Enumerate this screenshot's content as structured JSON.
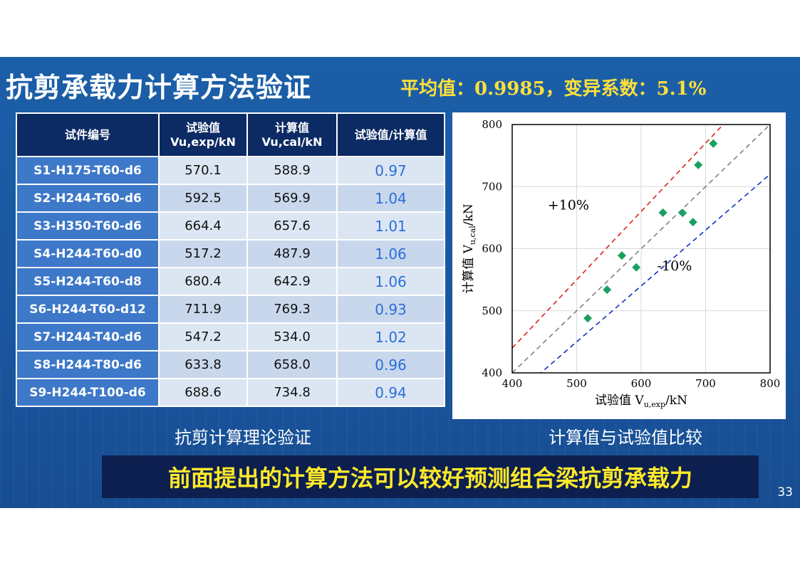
{
  "slide": {
    "title": "抗剪承载力计算方法验证",
    "stats": "平均值：0.9985，变异系数：5.1%",
    "left_caption": "抗剪计算理论验证",
    "right_caption": "计算值与试验值比较",
    "conclusion": "前面提出的计算方法可以较好预测组合梁抗剪承载力",
    "page_number": "33"
  },
  "table": {
    "headers": {
      "id": "试件编号",
      "exp_line1": "试验值",
      "exp_line2": "Vu,exp/kN",
      "cal_line1": "计算值",
      "cal_line2": "Vu,cal/kN",
      "ratio": "试验值/计算值"
    },
    "rows": [
      {
        "id": "S1-H175-T60-d6",
        "exp": "570.1",
        "cal": "588.9",
        "ratio": "0.97"
      },
      {
        "id": "S2-H244-T60-d6",
        "exp": "592.5",
        "cal": "569.9",
        "ratio": "1.04"
      },
      {
        "id": "S3-H350-T60-d6",
        "exp": "664.4",
        "cal": "657.6",
        "ratio": "1.01"
      },
      {
        "id": "S4-H244-T60-d0",
        "exp": "517.2",
        "cal": "487.9",
        "ratio": "1.06"
      },
      {
        "id": "S5-H244-T60-d8",
        "exp": "680.4",
        "cal": "642.9",
        "ratio": "1.06"
      },
      {
        "id": "S6-H244-T60-d12",
        "exp": "711.9",
        "cal": "769.3",
        "ratio": "0.93"
      },
      {
        "id": "S7-H244-T40-d6",
        "exp": "547.2",
        "cal": "534.0",
        "ratio": "1.02"
      },
      {
        "id": "S8-H244-T80-d6",
        "exp": "633.8",
        "cal": "658.0",
        "ratio": "0.96"
      },
      {
        "id": "S9-H244-T100-d6",
        "exp": "688.6",
        "cal": "734.8",
        "ratio": "0.94"
      }
    ]
  },
  "chart_data": {
    "type": "scatter",
    "xlabel": "试验值 V",
    "xlabel_sub": "u,exp",
    "xlabel_unit": "/kN",
    "ylabel": "计算值 V",
    "ylabel_sub": "u,cal",
    "ylabel_unit": "/kN",
    "xlim": [
      400,
      800
    ],
    "ylim": [
      400,
      800
    ],
    "xticks": [
      400,
      500,
      600,
      700,
      800
    ],
    "yticks": [
      400,
      500,
      600,
      700,
      800
    ],
    "grid": true,
    "points": [
      {
        "x": 570.1,
        "y": 588.9
      },
      {
        "x": 592.5,
        "y": 569.9
      },
      {
        "x": 664.4,
        "y": 657.6
      },
      {
        "x": 517.2,
        "y": 487.9
      },
      {
        "x": 680.4,
        "y": 642.9
      },
      {
        "x": 711.9,
        "y": 769.3
      },
      {
        "x": 547.2,
        "y": 534.0
      },
      {
        "x": 633.8,
        "y": 658.0
      },
      {
        "x": 688.6,
        "y": 734.8
      }
    ],
    "reference_lines": [
      {
        "slope": 1.1,
        "color": "#e02020",
        "style": "dashed"
      },
      {
        "slope": 1.0,
        "color": "#808080",
        "style": "dashed"
      },
      {
        "slope": 0.9,
        "color": "#1030c0",
        "style": "dashed"
      }
    ],
    "annotations": [
      {
        "text": "+10%",
        "x": 455,
        "y": 663
      },
      {
        "text": "-10%",
        "x": 625,
        "y": 565
      }
    ],
    "marker_color": "#1aa060"
  }
}
